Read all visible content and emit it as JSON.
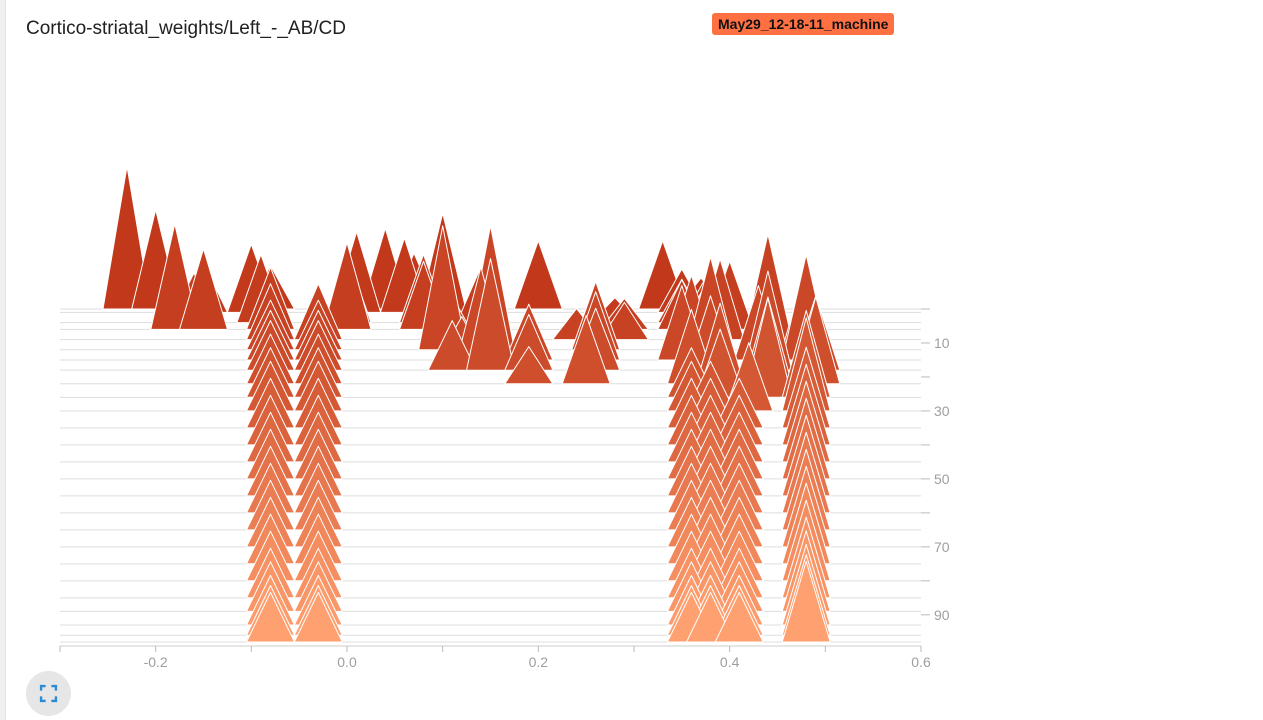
{
  "card": {
    "title": "Cortico-striatal_weights/Left_-_AB/CD",
    "run_tag": "May29_12-18-11_machine",
    "run_color": "#ff7043"
  },
  "controls": {
    "expand_icon": "fullscreen-icon"
  },
  "chart_data": {
    "type": "histogram-offset",
    "title": "",
    "xlabel": "",
    "ylabel": "",
    "xlim": [
      -0.3,
      0.6
    ],
    "x_ticks": [
      -0.2,
      0.0,
      0.2,
      0.4,
      0.6
    ],
    "x_tick_labels": [
      "-0.2",
      "0.0",
      "0.2",
      "0.4",
      "0.6"
    ],
    "step_lim": [
      0,
      98
    ],
    "y_ticks": [
      10,
      30,
      50,
      70,
      90
    ],
    "y_tick_labels": [
      "10",
      "30",
      "50",
      "70",
      "90"
    ],
    "y_minor_ticks": [
      0,
      20,
      40,
      60,
      80
    ],
    "colors": {
      "first_step": "#c1381a",
      "last_step": "#ffa070",
      "outline": "#ffffff",
      "baseline": "#dddddd"
    },
    "series": [
      {
        "step": 0,
        "peaks": [
          [
            -0.23,
            0.23
          ],
          [
            -0.2,
            0.16
          ],
          [
            -0.08,
            0.07
          ],
          [
            0.04,
            0.13
          ],
          [
            0.07,
            0.09
          ],
          [
            0.2,
            0.11
          ],
          [
            0.33,
            0.11
          ],
          [
            0.37,
            0.05
          ]
        ]
      },
      {
        "step": 1,
        "peaks": [
          [
            -0.15,
            0.08
          ],
          [
            -0.1,
            0.11
          ],
          [
            0.01,
            0.13
          ],
          [
            0.06,
            0.12
          ],
          [
            0.1,
            0.16
          ],
          [
            0.35,
            0.07
          ],
          [
            0.38,
            0.07
          ]
        ]
      },
      {
        "step": 4,
        "peaks": [
          [
            -0.16,
            0.08
          ],
          [
            -0.09,
            0.11
          ],
          [
            0.0,
            0.11
          ],
          [
            0.08,
            0.11
          ],
          [
            0.14,
            0.09
          ],
          [
            0.28,
            0.04
          ],
          [
            0.35,
            0.07
          ],
          [
            0.38,
            0.08
          ]
        ]
      },
      {
        "step": 6,
        "peaks": [
          [
            -0.18,
            0.17
          ],
          [
            -0.15,
            0.13
          ],
          [
            -0.08,
            0.1
          ],
          [
            0.0,
            0.14
          ],
          [
            0.08,
            0.11
          ],
          [
            0.29,
            0.05
          ],
          [
            0.35,
            0.08
          ],
          [
            0.4,
            0.11
          ]
        ]
      },
      {
        "step": 9,
        "peaks": [
          [
            -0.08,
            0.09
          ],
          [
            -0.03,
            0.09
          ],
          [
            0.11,
            0.07
          ],
          [
            0.24,
            0.05
          ],
          [
            0.29,
            0.06
          ],
          [
            0.39,
            0.13
          ],
          [
            0.44,
            0.17
          ]
        ]
      },
      {
        "step": 12,
        "peaks": [
          [
            -0.08,
            0.08
          ],
          [
            -0.03,
            0.08
          ],
          [
            0.1,
            0.2
          ],
          [
            0.15,
            0.2
          ],
          [
            0.26,
            0.11
          ],
          [
            0.36,
            0.12
          ],
          [
            0.38,
            0.15
          ],
          [
            0.48,
            0.14
          ]
        ]
      },
      {
        "step": 15,
        "peaks": [
          [
            -0.08,
            0.08
          ],
          [
            -0.03,
            0.08
          ],
          [
            0.12,
            0.07
          ],
          [
            0.14,
            0.15
          ],
          [
            0.19,
            0.09
          ],
          [
            0.26,
            0.11
          ],
          [
            0.35,
            0.12
          ],
          [
            0.43,
            0.12
          ],
          [
            0.48,
            0.17
          ]
        ]
      },
      {
        "step": 18,
        "peaks": [
          [
            -0.08,
            0.08
          ],
          [
            -0.03,
            0.08
          ],
          [
            0.11,
            0.08
          ],
          [
            0.15,
            0.18
          ],
          [
            0.19,
            0.09
          ],
          [
            0.26,
            0.1
          ],
          [
            0.38,
            0.12
          ],
          [
            0.44,
            0.16
          ],
          [
            0.49,
            0.12
          ]
        ]
      },
      {
        "step": 22,
        "peaks": [
          [
            -0.08,
            0.08
          ],
          [
            -0.03,
            0.08
          ],
          [
            0.19,
            0.06
          ],
          [
            0.25,
            0.11
          ],
          [
            0.36,
            0.12
          ],
          [
            0.39,
            0.13
          ],
          [
            0.44,
            0.14
          ],
          [
            0.49,
            0.14
          ]
        ]
      },
      {
        "step": 26,
        "peaks": [
          [
            -0.08,
            0.08
          ],
          [
            -0.03,
            0.08
          ],
          [
            0.36,
            0.08
          ],
          [
            0.39,
            0.11
          ],
          [
            0.44,
            0.16
          ],
          [
            0.48,
            0.14
          ]
        ]
      },
      {
        "step": 30,
        "peaks": [
          [
            -0.08,
            0.08
          ],
          [
            -0.03,
            0.08
          ],
          [
            0.36,
            0.08
          ],
          [
            0.38,
            0.08
          ],
          [
            0.42,
            0.11
          ],
          [
            0.48,
            0.15
          ]
        ]
      },
      {
        "step": 35,
        "peaks": [
          [
            -0.08,
            0.08
          ],
          [
            -0.03,
            0.08
          ],
          [
            0.36,
            0.08
          ],
          [
            0.38,
            0.08
          ],
          [
            0.41,
            0.08
          ],
          [
            0.48,
            0.13
          ]
        ]
      },
      {
        "step": 40,
        "peaks": [
          [
            -0.08,
            0.08
          ],
          [
            -0.03,
            0.08
          ],
          [
            0.36,
            0.08
          ],
          [
            0.38,
            0.08
          ],
          [
            0.41,
            0.08
          ],
          [
            0.48,
            0.13
          ]
        ]
      },
      {
        "step": 45,
        "peaks": [
          [
            -0.08,
            0.08
          ],
          [
            -0.03,
            0.08
          ],
          [
            0.36,
            0.08
          ],
          [
            0.38,
            0.08
          ],
          [
            0.41,
            0.08
          ],
          [
            0.48,
            0.13
          ]
        ]
      },
      {
        "step": 50,
        "peaks": [
          [
            -0.08,
            0.08
          ],
          [
            -0.03,
            0.08
          ],
          [
            0.36,
            0.08
          ],
          [
            0.38,
            0.08
          ],
          [
            0.41,
            0.08
          ],
          [
            0.48,
            0.13
          ]
        ]
      },
      {
        "step": 55,
        "peaks": [
          [
            -0.08,
            0.08
          ],
          [
            -0.03,
            0.08
          ],
          [
            0.36,
            0.08
          ],
          [
            0.38,
            0.08
          ],
          [
            0.41,
            0.08
          ],
          [
            0.48,
            0.13
          ]
        ]
      },
      {
        "step": 60,
        "peaks": [
          [
            -0.08,
            0.08
          ],
          [
            -0.03,
            0.08
          ],
          [
            0.36,
            0.08
          ],
          [
            0.38,
            0.08
          ],
          [
            0.41,
            0.08
          ],
          [
            0.48,
            0.13
          ]
        ]
      },
      {
        "step": 65,
        "peaks": [
          [
            -0.08,
            0.08
          ],
          [
            -0.03,
            0.08
          ],
          [
            0.36,
            0.08
          ],
          [
            0.38,
            0.08
          ],
          [
            0.41,
            0.08
          ],
          [
            0.48,
            0.13
          ]
        ]
      },
      {
        "step": 70,
        "peaks": [
          [
            -0.08,
            0.08
          ],
          [
            -0.03,
            0.08
          ],
          [
            0.36,
            0.08
          ],
          [
            0.38,
            0.08
          ],
          [
            0.41,
            0.08
          ],
          [
            0.48,
            0.13
          ]
        ]
      },
      {
        "step": 75,
        "peaks": [
          [
            -0.08,
            0.08
          ],
          [
            -0.03,
            0.08
          ],
          [
            0.36,
            0.08
          ],
          [
            0.38,
            0.08
          ],
          [
            0.41,
            0.08
          ],
          [
            0.48,
            0.13
          ]
        ]
      },
      {
        "step": 80,
        "peaks": [
          [
            -0.08,
            0.08
          ],
          [
            -0.03,
            0.08
          ],
          [
            0.36,
            0.08
          ],
          [
            0.38,
            0.08
          ],
          [
            0.41,
            0.08
          ],
          [
            0.48,
            0.13
          ]
        ]
      },
      {
        "step": 85,
        "peaks": [
          [
            -0.08,
            0.08
          ],
          [
            -0.03,
            0.08
          ],
          [
            0.36,
            0.08
          ],
          [
            0.38,
            0.08
          ],
          [
            0.41,
            0.08
          ],
          [
            0.48,
            0.13
          ]
        ]
      },
      {
        "step": 89,
        "peaks": [
          [
            -0.08,
            0.08
          ],
          [
            -0.03,
            0.08
          ],
          [
            0.36,
            0.08
          ],
          [
            0.38,
            0.08
          ],
          [
            0.41,
            0.08
          ],
          [
            0.48,
            0.13
          ]
        ]
      },
      {
        "step": 93,
        "peaks": [
          [
            -0.08,
            0.08
          ],
          [
            -0.03,
            0.08
          ],
          [
            0.36,
            0.08
          ],
          [
            0.38,
            0.08
          ],
          [
            0.41,
            0.08
          ],
          [
            0.48,
            0.13
          ]
        ]
      },
      {
        "step": 96,
        "peaks": [
          [
            -0.08,
            0.08
          ],
          [
            -0.03,
            0.08
          ],
          [
            0.36,
            0.08
          ],
          [
            0.38,
            0.08
          ],
          [
            0.41,
            0.08
          ],
          [
            0.48,
            0.13
          ]
        ]
      },
      {
        "step": 98,
        "peaks": [
          [
            -0.08,
            0.08
          ],
          [
            -0.03,
            0.08
          ],
          [
            0.36,
            0.08
          ],
          [
            0.38,
            0.08
          ],
          [
            0.41,
            0.08
          ],
          [
            0.48,
            0.13
          ]
        ]
      }
    ]
  }
}
